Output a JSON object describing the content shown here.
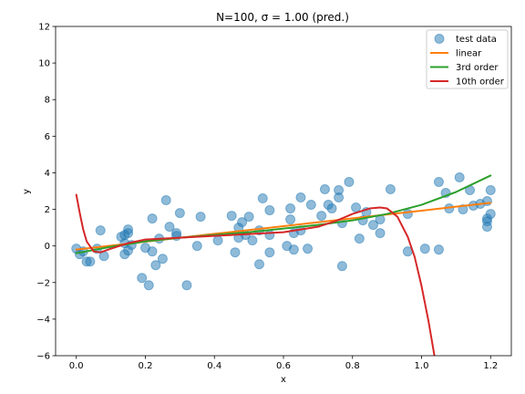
{
  "chart_data": {
    "type": "scatter",
    "title": "N=100, σ = 1.00 (pred.)",
    "xlabel": "x",
    "ylabel": "y",
    "xlim": [
      -0.06,
      1.26
    ],
    "ylim": [
      -6,
      12
    ],
    "xticks": [
      0.0,
      0.2,
      0.4,
      0.6,
      0.8,
      1.0,
      1.2
    ],
    "xtick_labels": [
      "0.0",
      "0.2",
      "0.4",
      "0.6",
      "0.8",
      "1.0",
      "1.2"
    ],
    "yticks": [
      -6,
      -4,
      -2,
      0,
      2,
      4,
      6,
      8,
      10,
      12
    ],
    "ytick_labels": [
      "−6",
      "−4",
      "−2",
      "0",
      "2",
      "4",
      "6",
      "8",
      "10",
      "12"
    ],
    "grid": false,
    "legend_position": "top-right",
    "legend": [
      "test data",
      "linear",
      "3rd order",
      "10th order"
    ],
    "colors": {
      "test data": "#1f77b4",
      "linear": "#ff7f0e",
      "3rd order": "#2ca02c",
      "10th order": "#d62728"
    },
    "scatter": {
      "name": "test data",
      "x": [
        0.0,
        0.01,
        0.02,
        0.03,
        0.04,
        0.06,
        0.07,
        0.08,
        0.13,
        0.14,
        0.14,
        0.14,
        0.15,
        0.15,
        0.15,
        0.16,
        0.19,
        0.2,
        0.21,
        0.22,
        0.22,
        0.23,
        0.24,
        0.25,
        0.26,
        0.27,
        0.29,
        0.29,
        0.3,
        0.32,
        0.35,
        0.36,
        0.41,
        0.45,
        0.46,
        0.47,
        0.47,
        0.48,
        0.49,
        0.5,
        0.51,
        0.53,
        0.53,
        0.54,
        0.56,
        0.56,
        0.56,
        0.61,
        0.62,
        0.62,
        0.63,
        0.63,
        0.65,
        0.65,
        0.67,
        0.68,
        0.71,
        0.72,
        0.73,
        0.74,
        0.76,
        0.76,
        0.77,
        0.77,
        0.79,
        0.81,
        0.82,
        0.83,
        0.84,
        0.86,
        0.88,
        0.88,
        0.91,
        0.96,
        0.96,
        1.01,
        1.05,
        1.05,
        1.07,
        1.08,
        1.11,
        1.12,
        1.14,
        1.15,
        1.17,
        1.19,
        1.19,
        1.19,
        1.19,
        1.2,
        1.2
      ],
      "y": [
        -0.15,
        -0.45,
        -0.3,
        -0.85,
        -0.85,
        -0.15,
        0.85,
        -0.55,
        0.5,
        -0.45,
        0.15,
        0.6,
        0.9,
        0.7,
        -0.25,
        0.05,
        -1.75,
        -0.1,
        -2.15,
        1.5,
        -0.3,
        -1.05,
        0.4,
        -0.7,
        2.5,
        1.05,
        0.55,
        0.7,
        1.8,
        -2.15,
        0.0,
        1.6,
        0.3,
        1.65,
        -0.35,
        1.0,
        0.45,
        1.3,
        0.6,
        1.6,
        0.3,
        -1.0,
        0.85,
        2.6,
        0.6,
        1.95,
        -0.35,
        0.0,
        2.05,
        1.45,
        0.7,
        -0.2,
        0.85,
        2.65,
        -0.15,
        2.25,
        1.65,
        3.1,
        2.25,
        2.05,
        2.65,
        3.05,
        1.25,
        -1.1,
        3.5,
        2.1,
        0.4,
        1.4,
        1.85,
        1.15,
        0.7,
        1.45,
        3.1,
        -0.3,
        1.75,
        -0.15,
        3.5,
        -0.2,
        2.9,
        2.05,
        3.75,
        2.0,
        3.05,
        2.2,
        2.3,
        1.35,
        1.5,
        1.05,
        2.45,
        3.05,
        1.75
      ]
    },
    "curves": {
      "linear": {
        "x": [
          0.0,
          0.2,
          0.4,
          0.6,
          0.8,
          1.0,
          1.2
        ],
        "y": [
          -0.2,
          0.23,
          0.66,
          1.08,
          1.51,
          1.93,
          2.36
        ]
      },
      "3rd order": {
        "x": [
          0.0,
          0.1,
          0.2,
          0.3,
          0.4,
          0.5,
          0.6,
          0.7,
          0.8,
          0.9,
          1.0,
          1.1,
          1.2
        ],
        "y": [
          -0.4,
          -0.05,
          0.25,
          0.45,
          0.6,
          0.75,
          0.95,
          1.15,
          1.4,
          1.75,
          2.25,
          2.95,
          3.85
        ]
      },
      "10th order": {
        "x": [
          0.0,
          0.01,
          0.02,
          0.03,
          0.05,
          0.07,
          0.1,
          0.15,
          0.2,
          0.3,
          0.4,
          0.5,
          0.6,
          0.7,
          0.75,
          0.8,
          0.85,
          0.88,
          0.9,
          0.93,
          0.96,
          0.98,
          1.0,
          1.02,
          1.04
        ],
        "y": [
          2.8,
          1.8,
          0.9,
          0.25,
          -0.3,
          -0.35,
          -0.15,
          0.15,
          0.35,
          0.45,
          0.55,
          0.65,
          0.75,
          1.05,
          1.35,
          1.75,
          2.05,
          2.1,
          2.05,
          1.6,
          0.5,
          -0.6,
          -2.2,
          -4.1,
          -6.3
        ]
      }
    }
  }
}
